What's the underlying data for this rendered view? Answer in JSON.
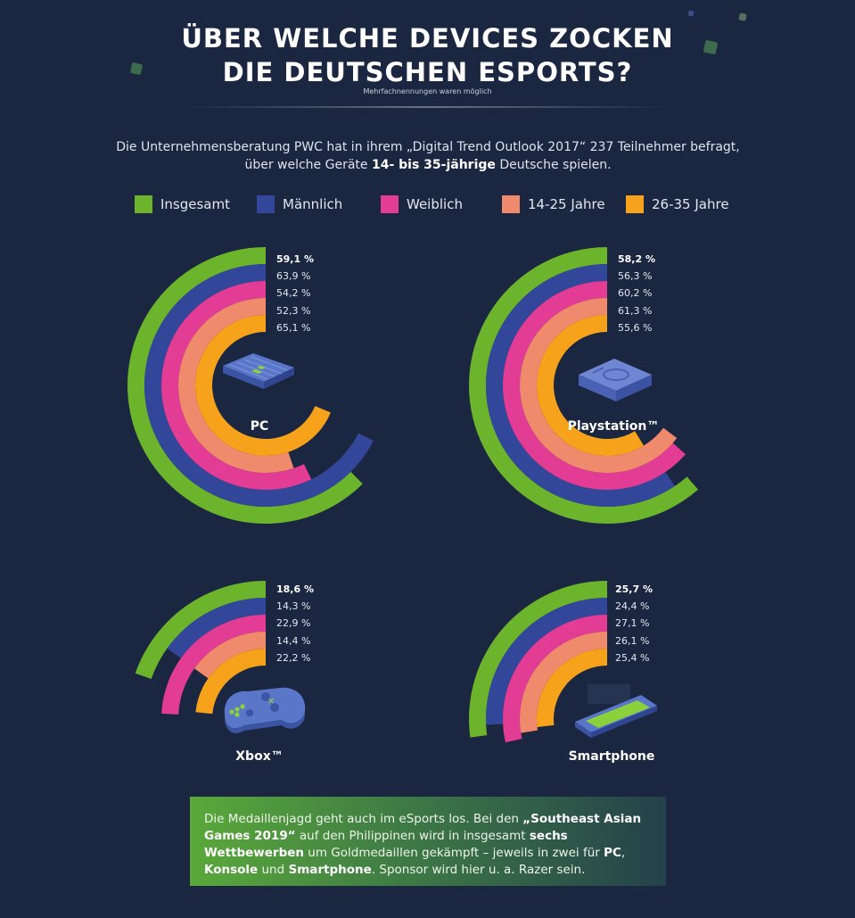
{
  "title_line1": "ÜBER WELCHE DEVICES ZOCKEN",
  "title_line2": "DIE DEUTSCHEN ESPORTS?",
  "subtitle": "Mehrfachnennungen waren möglich",
  "intro": {
    "line1": "Die Unternehmensberatung PWC hat in ihrem „Digital Trend Outlook 2017“ 237 Teilnehmer befragt,",
    "line2_pre": "über welche Geräte ",
    "line2_bold": "14- bis 35-jährige",
    "line2_post": " Deutsche spielen."
  },
  "legend": [
    {
      "label": "Insgesamt",
      "color": "#6cb42c"
    },
    {
      "label": "Männlich",
      "color": "#33479a"
    },
    {
      "label": "Weiblich",
      "color": "#e33c94"
    },
    {
      "label": "14-25 Jahre",
      "color": "#f08a6c"
    },
    {
      "label": "26-35 Jahre",
      "color": "#f7a21b"
    }
  ],
  "chart_data": [
    {
      "type": "radial-bar",
      "title": "PC",
      "series": [
        "Insgesamt",
        "Männlich",
        "Weiblich",
        "14-25 Jahre",
        "26-35 Jahre"
      ],
      "values": [
        59.1,
        63.9,
        54.2,
        52.3,
        65.1
      ],
      "labels": [
        "59,1 %",
        "63,9 %",
        "54,2 %",
        "52,3 %",
        "65,1 %"
      ],
      "unit": "%"
    },
    {
      "type": "radial-bar",
      "title": "Playstation™",
      "series": [
        "Insgesamt",
        "Männlich",
        "Weiblich",
        "14-25 Jahre",
        "26-35 Jahre"
      ],
      "values": [
        58.2,
        56.3,
        60.2,
        61.3,
        55.6
      ],
      "labels": [
        "58,2 %",
        "56,3 %",
        "60,2 %",
        "61,3 %",
        "55,6 %"
      ],
      "unit": "%"
    },
    {
      "type": "radial-bar",
      "title": "Xbox™",
      "series": [
        "Insgesamt",
        "Männlich",
        "Weiblich",
        "14-25 Jahre",
        "26-35 Jahre"
      ],
      "values": [
        18.6,
        14.3,
        22.9,
        14.4,
        22.2
      ],
      "labels": [
        "18,6 %",
        "14,3 %",
        "22,9 %",
        "14,4 %",
        "22,2 %"
      ],
      "unit": "%"
    },
    {
      "type": "radial-bar",
      "title": "Smartphone",
      "series": [
        "Insgesamt",
        "Männlich",
        "Weiblich",
        "14-25 Jahre",
        "26-35 Jahre"
      ],
      "values": [
        25.7,
        24.4,
        27.1,
        26.1,
        25.4
      ],
      "labels": [
        "25,7 %",
        "24,4 %",
        "27,1 %",
        "26,1 %",
        "25,4 %"
      ],
      "unit": "%"
    }
  ],
  "info": {
    "t1": "Die Medaillenjagd geht auch im eSports los. Bei den ",
    "b1": "„Southeast Asian Games 2019“",
    "t2": " auf den Philippinen wird in insgesamt ",
    "b2": "sechs Wettbewerben",
    "t3": " um Goldmedaillen gekämpft – jeweils in zwei für ",
    "b3": "PC",
    "t4": ", ",
    "b4": "Konsole",
    "t5": " und ",
    "b5": "Smartphone",
    "t6": ". Sponsor wird hier u. a. Razer sein."
  }
}
